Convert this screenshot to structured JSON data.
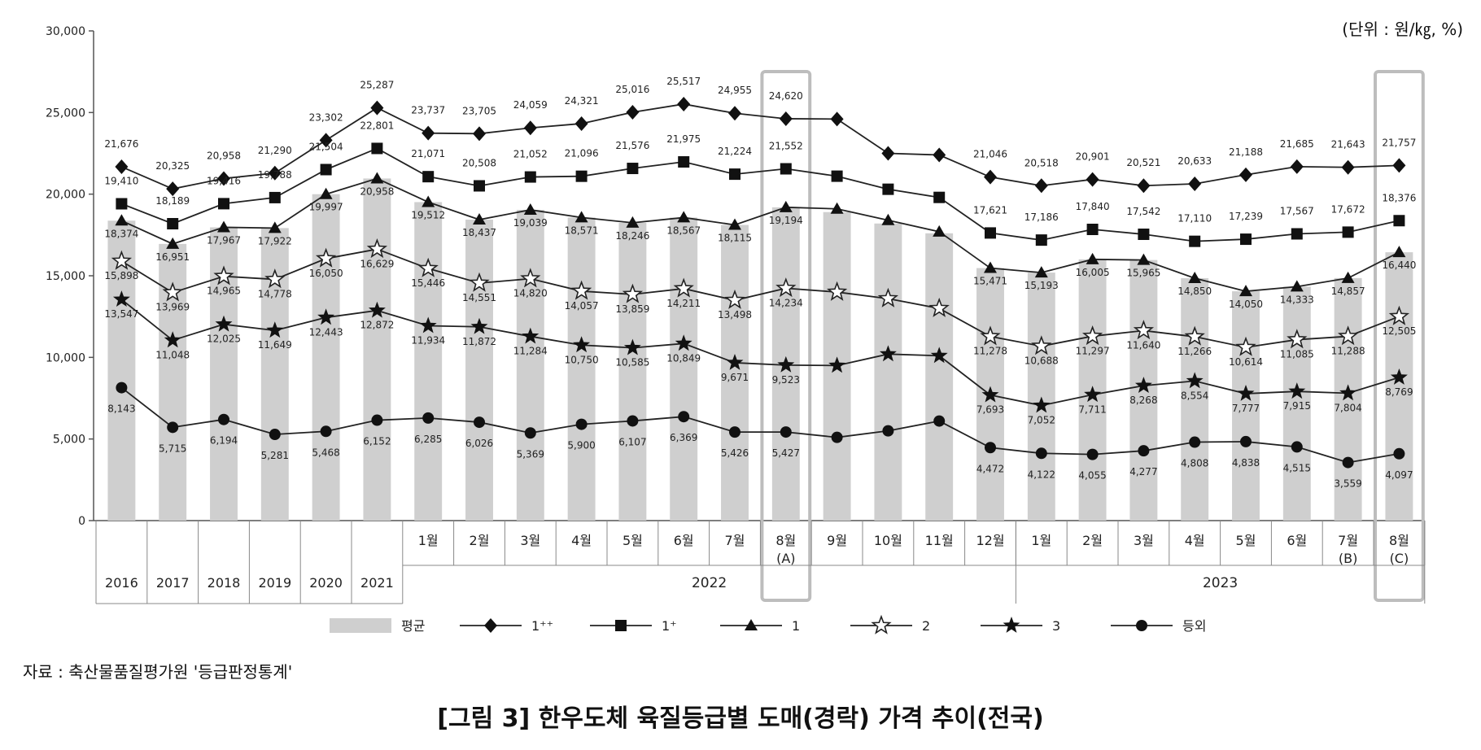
{
  "unit_note": "(단위 : 원/㎏, %)",
  "source_note": "자료 : 축산물품질평가원 '등급판정통계'",
  "figure_title": "[그림 3] 한우도체 육질등급별 도매(경락) 가격 추이(전국)",
  "chart_data": {
    "type": "line",
    "title": "[그림 3] 한우도체 육질등급별 도매(경락) 가격 추이(전국)",
    "unit": "(단위 : 원/㎏, %)",
    "ylim": [
      0,
      30000
    ],
    "yticks": [
      0,
      5000,
      10000,
      15000,
      20000,
      25000,
      30000
    ],
    "ytick_labels": [
      "0",
      "5,000",
      "10,000",
      "15,000",
      "20,000",
      "25,000",
      "30,000"
    ],
    "grid": false,
    "legend_position": "bottom",
    "categories": [
      "2016",
      "2017",
      "2018",
      "2019",
      "2020",
      "2021",
      "2022-01",
      "2022-02",
      "2022-03",
      "2022-04",
      "2022-05",
      "2022-06",
      "2022-07",
      "2022-08",
      "2022-09",
      "2022-10",
      "2022-11",
      "2022-12",
      "2023-01",
      "2023-02",
      "2023-03",
      "2023-04",
      "2023-05",
      "2023-06",
      "2023-07",
      "2023-08"
    ],
    "x_labels": [
      "2016",
      "2017",
      "2018",
      "2019",
      "2020",
      "2021",
      "1월",
      "2월",
      "3월",
      "4월",
      "5월",
      "6월",
      "7월",
      "8월",
      "9월",
      "10월",
      "11월",
      "12월",
      "1월",
      "2월",
      "3월",
      "4월",
      "5월",
      "6월",
      "7월",
      "8월"
    ],
    "x_sublabels": [
      "",
      "",
      "",
      "",
      "",
      "",
      "",
      "",
      "",
      "",
      "",
      "",
      "",
      "(A)",
      "",
      "",
      "",
      "",
      "",
      "",
      "",
      "",
      "",
      "",
      "(B)",
      "(C)"
    ],
    "year_groups": [
      {
        "label": "2022",
        "start": 6,
        "end": 17
      },
      {
        "label": "2023",
        "start": 18,
        "end": 25
      }
    ],
    "highlight_columns": [
      13,
      25
    ],
    "series": [
      {
        "name": "평균",
        "kind": "bar",
        "color": "#cfcfcf",
        "values": [
          18374,
          16951,
          17967,
          17922,
          19997,
          20958,
          19512,
          18437,
          19039,
          18571,
          18246,
          18567,
          18115,
          19194,
          18900,
          18200,
          17600,
          15471,
          15193,
          16005,
          15965,
          14850,
          14050,
          14333,
          14857,
          16440
        ]
      },
      {
        "name": "1⁺⁺",
        "kind": "line",
        "marker": "diamond",
        "values": [
          21676,
          20325,
          20958,
          21290,
          23302,
          25287,
          23737,
          23705,
          24059,
          24321,
          25016,
          25517,
          24955,
          24620,
          24600,
          22500,
          22400,
          21046,
          20518,
          20901,
          20521,
          20633,
          21188,
          21685,
          21643,
          21757
        ],
        "labels": [
          "21,676",
          "20,325",
          "20,958",
          "21,290",
          "23,302",
          "25,287",
          "23,737",
          "23,705",
          "24,059",
          "24,321",
          "25,016",
          "25,517",
          "24,955",
          "24,620",
          "",
          "",
          "",
          "21,046",
          "20,518",
          "20,901",
          "20,521",
          "20,633",
          "21,188",
          "21,685",
          "21,643",
          "21,757"
        ]
      },
      {
        "name": "1⁺",
        "kind": "line",
        "marker": "square",
        "values": [
          19410,
          18189,
          19416,
          19788,
          21504,
          22801,
          21071,
          20508,
          21052,
          21096,
          21576,
          21975,
          21224,
          21552,
          21100,
          20300,
          19800,
          17621,
          17186,
          17840,
          17542,
          17110,
          17239,
          17567,
          17672,
          18376
        ],
        "labels": [
          "19,410",
          "18,189",
          "19,416",
          "19,788",
          "21,504",
          "22,801",
          "21,071",
          "20,508",
          "21,052",
          "21,096",
          "21,576",
          "21,975",
          "21,224",
          "21,552",
          "",
          "",
          "",
          "17,621",
          "17,186",
          "17,840",
          "17,542",
          "17,110",
          "17,239",
          "17,567",
          "17,672",
          "18,376"
        ]
      },
      {
        "name": "1",
        "kind": "line",
        "marker": "triangle",
        "values": [
          18374,
          16951,
          17967,
          17922,
          19997,
          20958,
          19512,
          18437,
          19039,
          18571,
          18246,
          18567,
          18115,
          19194,
          19100,
          18400,
          17700,
          15471,
          15193,
          16005,
          15965,
          14850,
          14050,
          14333,
          14857,
          16440
        ],
        "labels": [
          "18,374",
          "16,951",
          "17,967",
          "17,922",
          "19,997",
          "20,958",
          "19,512",
          "18,437",
          "19,039",
          "18,571",
          "18,246",
          "18,567",
          "18,115",
          "19,194",
          "",
          "",
          "",
          "15,471",
          "15,193",
          "16,005",
          "15,965",
          "14,850",
          "14,050",
          "14,333",
          "14,857",
          "16,440"
        ]
      },
      {
        "name": "2",
        "kind": "line",
        "marker": "star-open",
        "values": [
          15898,
          13969,
          14965,
          14778,
          16050,
          16629,
          15446,
          14551,
          14820,
          14057,
          13859,
          14211,
          13498,
          14234,
          14000,
          13600,
          13000,
          11278,
          10688,
          11297,
          11640,
          11266,
          10614,
          11085,
          11288,
          12505
        ],
        "labels": [
          "15,898",
          "13,969",
          "14,965",
          "14,778",
          "16,050",
          "16,629",
          "15,446",
          "14,551",
          "14,820",
          "14,057",
          "13,859",
          "14,211",
          "13,498",
          "14,234",
          "",
          "",
          "",
          "11,278",
          "10,688",
          "11,297",
          "11,640",
          "11,266",
          "10,614",
          "11,085",
          "11,288",
          "12,505"
        ]
      },
      {
        "name": "3",
        "kind": "line",
        "marker": "star-filled",
        "values": [
          13547,
          11048,
          12025,
          11649,
          12443,
          12872,
          11934,
          11872,
          11284,
          10750,
          10585,
          10849,
          9671,
          9523,
          9500,
          10200,
          10100,
          7693,
          7052,
          7711,
          8268,
          8554,
          7777,
          7915,
          7804,
          8769
        ],
        "labels": [
          "13,547",
          "11,048",
          "12,025",
          "11,649",
          "12,443",
          "12,872",
          "11,934",
          "11,872",
          "11,284",
          "10,750",
          "10,585",
          "10,849",
          "9,671",
          "9,523",
          "",
          "",
          "",
          "7,693",
          "7,052",
          "7,711",
          "8,268",
          "8,554",
          "7,777",
          "7,915",
          "7,804",
          "8,769"
        ]
      },
      {
        "name": "등외",
        "kind": "line",
        "marker": "circle",
        "values": [
          8143,
          5715,
          6194,
          5281,
          5468,
          6152,
          6285,
          6026,
          5369,
          5900,
          6107,
          6369,
          5426,
          5427,
          5100,
          5500,
          6100,
          4472,
          4122,
          4055,
          4277,
          4808,
          4838,
          4515,
          3559,
          4097
        ],
        "labels": [
          "8,143",
          "5,715",
          "6,194",
          "5,281",
          "5,468",
          "6,152",
          "6,285",
          "6,026",
          "5,369",
          "5,900",
          "6,107",
          "6,369",
          "5,426",
          "5,427",
          "",
          "",
          "",
          "4,472",
          "4,122",
          "4,055",
          "4,277",
          "4,808",
          "4,838",
          "4,515",
          "3,559",
          "4,097"
        ]
      }
    ]
  }
}
